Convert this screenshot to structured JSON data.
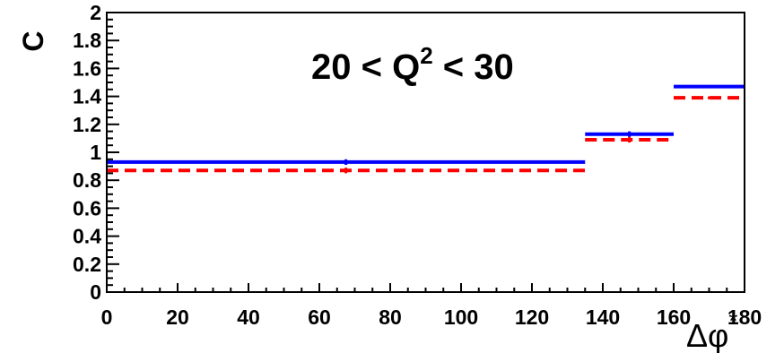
{
  "chart_data": {
    "type": "line",
    "title": "20 < Q",
    "title_sup": "2",
    "title_tail": " < 30",
    "xlabel": "Δφ",
    "xlabel_sup": "*",
    "ylabel": "C",
    "xlim": [
      0,
      180
    ],
    "ylim": [
      0,
      2
    ],
    "xticks": [
      0,
      20,
      40,
      60,
      80,
      100,
      120,
      140,
      160,
      180
    ],
    "xtick_labels": [
      "0",
      "20",
      "40",
      "60",
      "80",
      "100",
      "120",
      "140",
      "160",
      "180"
    ],
    "yticks": [
      0,
      0.2,
      0.4,
      0.6,
      0.8,
      1,
      1.2,
      1.4,
      1.6,
      1.8,
      2
    ],
    "ytick_labels": [
      "0",
      "0.2",
      "0.4",
      "0.6",
      "0.8",
      "1",
      "1.2",
      "1.4",
      "1.6",
      "1.8",
      "2"
    ],
    "series": [
      {
        "style": "solid",
        "color": "#0000ff",
        "bins": [
          {
            "x0": 0,
            "x1": 135,
            "y": 0.93,
            "err": 0.02
          },
          {
            "x0": 135,
            "x1": 160,
            "y": 1.13,
            "err": 0.02
          },
          {
            "x0": 160,
            "x1": 180,
            "y": 1.47,
            "err": 0.01
          }
        ]
      },
      {
        "style": "dashed",
        "color": "#ff0000",
        "bins": [
          {
            "x0": 0,
            "x1": 135,
            "y": 0.87,
            "err": 0.02
          },
          {
            "x0": 135,
            "x1": 160,
            "y": 1.09,
            "err": 0.02
          },
          {
            "x0": 160,
            "x1": 180,
            "y": 1.39,
            "err": 0.01
          }
        ]
      }
    ]
  }
}
